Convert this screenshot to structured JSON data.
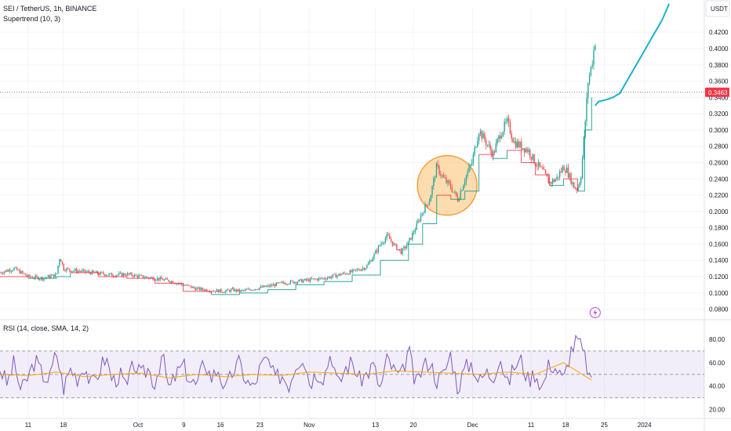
{
  "header": {
    "symbol_line": "SEI / TetherUS, 1h, BINANCE",
    "indicator_line": "Supertrend (10, 3)",
    "rsi_line": "RSI (14, close, SMA, 14, 2)",
    "currency_label": "USDT"
  },
  "colors": {
    "candle_up": "#26a69a",
    "candle_down": "#ef5350",
    "supertrend_up": "#089981",
    "supertrend_down": "#f23645",
    "projection": "#19b3c8",
    "rsi_line": "#7e57c2",
    "rsi_ma": "#f7a600",
    "highlight_fill": "#fbc77a",
    "highlight_stroke": "#f29d38",
    "price_badge": "#f23645"
  },
  "icons": {
    "lightning": "lightning-bolt-icon"
  },
  "chart_data": [
    {
      "type": "line",
      "title": "SEI / TetherUS, 1h, BINANCE",
      "indicator": "Supertrend (10, 3)",
      "y_scale": "linear",
      "ylim": [
        0.07,
        0.45
      ],
      "y_ticks": [
        "0.4200",
        "0.4000",
        "0.3800",
        "0.3600",
        "0.3400",
        "0.3200",
        "0.3000",
        "0.2800",
        "0.2600",
        "0.2400",
        "0.2200",
        "0.2000",
        "0.1800",
        "0.1600",
        "0.1400",
        "0.1200",
        "0.1000",
        "0.0800"
      ],
      "x_ticks": [
        "11",
        "18",
        "Oct",
        "9",
        "16",
        "23",
        "Nov",
        "13",
        "20",
        "Dec",
        "11",
        "18",
        "25",
        "2024"
      ],
      "x_domain": [
        0,
        100
      ],
      "x_tick_positions": [
        4.0,
        9.0,
        19.6,
        26.1,
        31.3,
        36.9,
        43.9,
        53.3,
        58.7,
        67.1,
        75.4,
        80.3,
        85.8,
        91.5
      ],
      "current_price": 0.3463,
      "current_price_label": "0.3463",
      "price_series": {
        "x": [
          0,
          2,
          4,
          6,
          8,
          8.5,
          9,
          10,
          12,
          14,
          16,
          18,
          20,
          22,
          24,
          26,
          28,
          30,
          32,
          33,
          34,
          36,
          38,
          40,
          42,
          44,
          46,
          48,
          50,
          52,
          53,
          54,
          55,
          56,
          57,
          58,
          59,
          60,
          61,
          62,
          63,
          64,
          65,
          66,
          67,
          68,
          69,
          70,
          71,
          72,
          73,
          74,
          75,
          76,
          77,
          78,
          79,
          80,
          80.5,
          81,
          81.5,
          82,
          82.5,
          83,
          83.5,
          84,
          84.5
        ],
        "y": [
          0.125,
          0.13,
          0.12,
          0.118,
          0.122,
          0.145,
          0.13,
          0.128,
          0.126,
          0.124,
          0.122,
          0.123,
          0.12,
          0.118,
          0.115,
          0.11,
          0.105,
          0.103,
          0.102,
          0.104,
          0.102,
          0.105,
          0.108,
          0.112,
          0.114,
          0.116,
          0.118,
          0.122,
          0.126,
          0.132,
          0.145,
          0.16,
          0.17,
          0.158,
          0.15,
          0.162,
          0.18,
          0.2,
          0.215,
          0.255,
          0.24,
          0.23,
          0.215,
          0.24,
          0.26,
          0.3,
          0.285,
          0.27,
          0.295,
          0.31,
          0.285,
          0.28,
          0.275,
          0.26,
          0.25,
          0.235,
          0.24,
          0.255,
          0.25,
          0.24,
          0.23,
          0.228,
          0.245,
          0.3,
          0.36,
          0.38,
          0.41
        ]
      },
      "supertrend_series": {
        "x": [
          0,
          4,
          8,
          10,
          14,
          18,
          22,
          26,
          30,
          34,
          38,
          42,
          46,
          50,
          54,
          58,
          60,
          62,
          64,
          66,
          68,
          70,
          72,
          74,
          76,
          78,
          80,
          82,
          83,
          84
        ],
        "y": [
          0.12,
          0.118,
          0.12,
          0.125,
          0.12,
          0.118,
          0.112,
          0.102,
          0.098,
          0.1,
          0.104,
          0.11,
          0.114,
          0.122,
          0.14,
          0.16,
          0.185,
          0.22,
          0.215,
          0.225,
          0.27,
          0.265,
          0.275,
          0.26,
          0.245,
          0.232,
          0.24,
          0.225,
          0.3,
          0.34
        ]
      },
      "projection_series": {
        "x": [
          84.5,
          85,
          86,
          87,
          88,
          89,
          90,
          91,
          92,
          93,
          94,
          95
        ],
        "y": [
          0.33,
          0.335,
          0.337,
          0.34,
          0.345,
          0.36,
          0.375,
          0.39,
          0.405,
          0.42,
          0.435,
          0.455
        ]
      },
      "highlight_circle": {
        "x": 63.5,
        "y": 0.232
      }
    },
    {
      "type": "line",
      "title": "RSI (14, close, SMA, 14, 2)",
      "ylim": [
        15,
        90
      ],
      "y_ticks": [
        "80.00",
        "60.00",
        "40.00",
        "20.00"
      ],
      "bands": {
        "upper": 70,
        "middle": 50,
        "lower": 30
      },
      "rsi_series": {
        "x": [
          0,
          1,
          2,
          3,
          4,
          5,
          6,
          7,
          8,
          9,
          10,
          11,
          12,
          13,
          14,
          15,
          16,
          17,
          18,
          19,
          20,
          21,
          22,
          23,
          24,
          25,
          26,
          27,
          28,
          29,
          30,
          31,
          32,
          33,
          34,
          35,
          36,
          37,
          38,
          39,
          40,
          41,
          42,
          43,
          44,
          45,
          46,
          47,
          48,
          49,
          50,
          51,
          52,
          53,
          54,
          55,
          56,
          57,
          58,
          59,
          60,
          61,
          62,
          63,
          64,
          65,
          66,
          67,
          68,
          69,
          70,
          71,
          72,
          73,
          74,
          75,
          76,
          77,
          78,
          79,
          80,
          81,
          82,
          83,
          84
        ],
        "y": [
          55,
          42,
          60,
          35,
          48,
          62,
          50,
          45,
          70,
          38,
          55,
          47,
          58,
          40,
          52,
          65,
          44,
          50,
          38,
          60,
          48,
          55,
          42,
          68,
          36,
          50,
          58,
          45,
          40,
          62,
          47,
          55,
          35,
          52,
          60,
          44,
          38,
          57,
          63,
          46,
          50,
          41,
          59,
          66,
          43,
          52,
          48,
          70,
          39,
          55,
          61,
          45,
          50,
          58,
          37,
          64,
          52,
          47,
          72,
          40,
          56,
          62,
          45,
          50,
          68,
          38,
          55,
          60,
          43,
          52,
          48,
          66,
          40,
          57,
          62,
          45,
          52,
          38,
          60,
          55,
          44,
          70,
          80,
          65,
          40
        ]
      },
      "rsi_ma_series": {
        "x": [
          0,
          4,
          8,
          12,
          16,
          20,
          24,
          28,
          32,
          36,
          40,
          44,
          48,
          52,
          56,
          60,
          64,
          68,
          72,
          76,
          80,
          84
        ],
        "y": [
          50,
          49,
          52,
          48,
          50,
          51,
          47,
          50,
          48,
          50,
          49,
          52,
          51,
          50,
          53,
          52,
          51,
          50,
          52,
          50,
          60,
          45
        ]
      }
    }
  ]
}
